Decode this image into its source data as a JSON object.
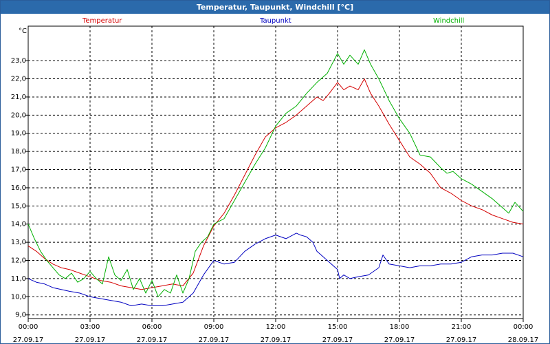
{
  "window": {
    "title": "Temperatur, Taupunkt, Windchill [°C]"
  },
  "colors": {
    "temperatur": "#d40000",
    "taupunkt": "#0000c0",
    "windchill": "#00b000",
    "titlebar": "#2b6aab"
  },
  "chart_data": {
    "type": "line",
    "title": "Temperatur, Taupunkt, Windchill [°C]",
    "ylabel": "°C",
    "ylim": [
      8.8,
      24.9
    ],
    "xlim": [
      0,
      24
    ],
    "grid": true,
    "legend_placement": "top",
    "y_ticks": [
      "9,0",
      "10,0",
      "11,0",
      "12,0",
      "13,0",
      "14,0",
      "15,0",
      "16,0",
      "17,0",
      "18,0",
      "19,0",
      "20,0",
      "21,0",
      "22,0",
      "23,0"
    ],
    "x_ticks": [
      {
        "time": "00:00",
        "date": "27.09.17"
      },
      {
        "time": "03:00",
        "date": "27.09.17"
      },
      {
        "time": "06:00",
        "date": "27.09.17"
      },
      {
        "time": "09:00",
        "date": "27.09.17"
      },
      {
        "time": "12:00",
        "date": "27.09.17"
      },
      {
        "time": "15:00",
        "date": "27.09.17"
      },
      {
        "time": "18:00",
        "date": "27.09.17"
      },
      {
        "time": "21:00",
        "date": "27.09.17"
      },
      {
        "time": "00:00",
        "date": "28.09.17"
      }
    ],
    "series": [
      {
        "name": "Temperatur",
        "color": "#d40000",
        "x": [
          0,
          0.4,
          0.8,
          1.2,
          1.6,
          2.0,
          2.5,
          3.0,
          3.5,
          4.0,
          4.5,
          5.0,
          5.5,
          6.0,
          6.5,
          7.0,
          7.5,
          8.0,
          8.5,
          9.0,
          9.5,
          10.0,
          10.5,
          11.0,
          11.5,
          12.0,
          12.5,
          13.0,
          13.5,
          14.0,
          14.3,
          14.6,
          15.0,
          15.3,
          15.6,
          16.0,
          16.3,
          16.6,
          17.0,
          17.5,
          18.0,
          18.5,
          19.0,
          19.5,
          20.0,
          20.5,
          21.0,
          21.5,
          22.0,
          22.5,
          23.0,
          23.5,
          24.0
        ],
        "y": [
          12.8,
          12.5,
          12.1,
          11.8,
          11.6,
          11.5,
          11.3,
          11.1,
          10.9,
          10.8,
          10.6,
          10.5,
          10.4,
          10.5,
          10.6,
          10.7,
          10.6,
          11.3,
          12.8,
          13.9,
          14.6,
          15.6,
          16.7,
          17.8,
          18.8,
          19.3,
          19.6,
          20.0,
          20.5,
          21.0,
          20.8,
          21.2,
          21.8,
          21.4,
          21.6,
          21.4,
          22.0,
          21.2,
          20.5,
          19.5,
          18.6,
          17.7,
          17.3,
          16.8,
          16.0,
          15.7,
          15.3,
          15.0,
          14.8,
          14.5,
          14.3,
          14.1,
          14.0
        ]
      },
      {
        "name": "Taupunkt",
        "color": "#0000c0",
        "x": [
          0,
          0.4,
          0.8,
          1.2,
          1.6,
          2.0,
          2.5,
          3.0,
          3.5,
          4.0,
          4.5,
          5.0,
          5.5,
          6.0,
          6.5,
          7.0,
          7.5,
          8.0,
          8.5,
          9.0,
          9.5,
          10.0,
          10.5,
          11.0,
          11.5,
          12.0,
          12.5,
          13.0,
          13.2,
          13.5,
          13.8,
          14.0,
          14.5,
          15.0,
          15.1,
          15.3,
          15.6,
          16.0,
          16.5,
          17.0,
          17.2,
          17.5,
          18.0,
          18.5,
          19.0,
          19.5,
          20.0,
          20.5,
          21.0,
          21.5,
          22.0,
          22.5,
          23.0,
          23.5,
          24.0
        ],
        "y": [
          11.0,
          10.8,
          10.7,
          10.5,
          10.4,
          10.3,
          10.2,
          10.0,
          9.9,
          9.8,
          9.7,
          9.5,
          9.6,
          9.5,
          9.5,
          9.6,
          9.7,
          10.2,
          11.2,
          12.0,
          11.8,
          11.9,
          12.5,
          12.9,
          13.2,
          13.4,
          13.2,
          13.5,
          13.4,
          13.3,
          13.0,
          12.5,
          12.0,
          11.5,
          11.0,
          11.2,
          11.0,
          11.1,
          11.2,
          11.6,
          12.3,
          11.8,
          11.7,
          11.6,
          11.7,
          11.7,
          11.8,
          11.8,
          11.9,
          12.2,
          12.3,
          12.3,
          12.4,
          12.4,
          12.2
        ]
      },
      {
        "name": "Windchill",
        "color": "#00b000",
        "x": [
          0,
          0.3,
          0.6,
          0.9,
          1.2,
          1.5,
          1.8,
          2.1,
          2.4,
          2.7,
          3.0,
          3.3,
          3.6,
          3.9,
          4.2,
          4.5,
          4.8,
          5.1,
          5.4,
          5.7,
          6.0,
          6.3,
          6.6,
          6.9,
          7.2,
          7.5,
          7.8,
          8.1,
          8.4,
          8.7,
          9.0,
          9.5,
          10.0,
          10.5,
          11.0,
          11.5,
          12.0,
          12.5,
          13.0,
          13.5,
          14.0,
          14.5,
          15.0,
          15.3,
          15.6,
          16.0,
          16.3,
          16.6,
          17.0,
          17.5,
          18.0,
          18.5,
          19.0,
          19.5,
          20.0,
          20.3,
          20.6,
          21.0,
          21.5,
          22.0,
          22.5,
          23.0,
          23.3,
          23.6,
          24.0
        ],
        "y": [
          14.0,
          13.2,
          12.5,
          12.0,
          11.6,
          11.2,
          11.0,
          11.3,
          10.8,
          11.0,
          11.4,
          11.0,
          10.7,
          12.2,
          11.2,
          10.9,
          11.5,
          10.4,
          11.0,
          10.2,
          10.9,
          10.0,
          10.4,
          10.2,
          11.2,
          10.2,
          11.0,
          12.5,
          13.0,
          13.3,
          14.0,
          14.3,
          15.3,
          16.3,
          17.3,
          18.2,
          19.4,
          20.1,
          20.5,
          21.2,
          21.8,
          22.3,
          23.4,
          22.8,
          23.3,
          22.8,
          23.6,
          22.8,
          22.0,
          20.8,
          19.8,
          19.0,
          17.8,
          17.7,
          17.1,
          16.8,
          16.9,
          16.5,
          16.2,
          15.8,
          15.4,
          14.9,
          14.6,
          15.2,
          14.7
        ]
      }
    ]
  }
}
